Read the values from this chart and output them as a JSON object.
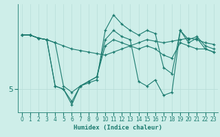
{
  "xlabel": "Humidex (Indice chaleur)",
  "background_color": "#ceeee9",
  "line_color": "#1a7a6e",
  "grid_color": "#b8ddd8",
  "xlim": [
    -0.5,
    23.5
  ],
  "ylim": [
    3.5,
    10.5
  ],
  "ytick_val": 5,
  "lines": [
    [
      8.5,
      8.5,
      8.3,
      8.2,
      8.0,
      7.8,
      7.6,
      7.5,
      7.4,
      7.3,
      7.2,
      7.4,
      7.6,
      7.8,
      8.0,
      8.2,
      8.1,
      8.0,
      8.1,
      8.2,
      8.3,
      8.2,
      8.0,
      7.9
    ],
    [
      8.5,
      8.5,
      8.3,
      8.2,
      8.0,
      5.2,
      4.8,
      5.2,
      5.4,
      5.6,
      8.8,
      9.8,
      9.2,
      8.8,
      8.5,
      8.8,
      8.6,
      6.4,
      6.0,
      8.8,
      8.2,
      8.4,
      7.8,
      7.6
    ],
    [
      8.5,
      8.5,
      8.3,
      8.2,
      5.2,
      5.0,
      4.0,
      5.2,
      5.5,
      5.8,
      8.2,
      8.8,
      8.4,
      8.2,
      5.5,
      5.2,
      5.6,
      4.6,
      4.8,
      8.8,
      8.0,
      8.3,
      7.6,
      7.4
    ],
    [
      8.5,
      8.5,
      8.3,
      8.2,
      5.2,
      5.0,
      4.2,
      5.2,
      5.5,
      5.8,
      7.8,
      8.2,
      8.0,
      7.8,
      7.6,
      7.8,
      7.6,
      7.2,
      7.0,
      8.0,
      7.8,
      7.6,
      7.6,
      7.4
    ]
  ]
}
